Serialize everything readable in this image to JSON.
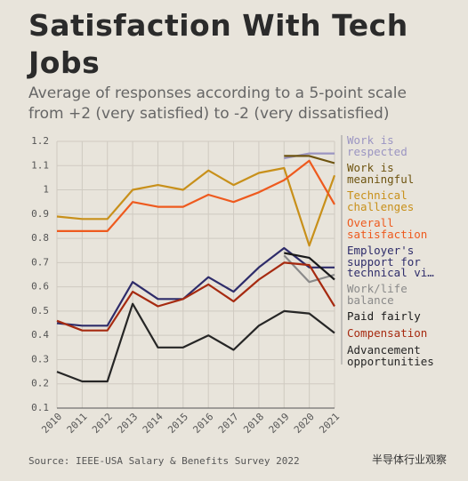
{
  "chart_data": {
    "type": "line",
    "title": "Satisfaction With Tech Jobs",
    "subtitle": "Average of responses according to a 5-point scale from +2 (very satisfied) to -2 (very dissatisfied)",
    "source": "Source: IEEE-USA Salary & Benefits Survey 2022",
    "watermark": "半导体行业观察",
    "categories": [
      "2010",
      "2011",
      "2012",
      "2013",
      "2014",
      "2015",
      "2016",
      "2017",
      "2018",
      "2019",
      "2020",
      "2021"
    ],
    "ylim": [
      0.1,
      1.2
    ],
    "yticks": [
      0.1,
      0.2,
      0.3,
      0.4,
      0.5,
      0.6,
      0.7,
      0.8,
      0.9,
      {
        "value": 1,
        "label": "1"
      },
      1.1,
      1.2
    ],
    "grid": true,
    "series": [
      {
        "name": "Work is respected",
        "color": "#9b95c2",
        "values": [
          null,
          null,
          null,
          null,
          null,
          null,
          null,
          null,
          null,
          1.13,
          1.15,
          1.15
        ]
      },
      {
        "name": "Work is meaningful",
        "color": "#6e5410",
        "values": [
          null,
          null,
          null,
          null,
          null,
          null,
          null,
          null,
          null,
          1.14,
          1.14,
          1.11
        ]
      },
      {
        "name": "Technical challenges",
        "color": "#c8901a",
        "values": [
          0.89,
          0.88,
          0.88,
          1.0,
          1.02,
          1.0,
          1.08,
          1.02,
          1.07,
          1.09,
          0.77,
          1.06
        ]
      },
      {
        "name": "Overall satisfaction",
        "color": "#ee5a1e",
        "values": [
          0.83,
          0.83,
          0.83,
          0.95,
          0.93,
          0.93,
          0.98,
          0.95,
          0.99,
          1.04,
          1.12,
          0.94
        ]
      },
      {
        "name": "Employer's support for technical vi…",
        "color": "#2e2c6a",
        "values": [
          0.45,
          0.44,
          0.44,
          0.62,
          0.55,
          0.55,
          0.64,
          0.58,
          0.68,
          0.76,
          0.68,
          0.68
        ]
      },
      {
        "name": "Work/life balance",
        "color": "#8a8a8a",
        "values": [
          null,
          null,
          null,
          null,
          null,
          null,
          null,
          null,
          null,
          0.73,
          0.62,
          0.65
        ]
      },
      {
        "name": "Paid fairly",
        "color": "#1a1a1a",
        "values": [
          null,
          null,
          null,
          null,
          null,
          null,
          null,
          null,
          null,
          0.74,
          0.72,
          0.63
        ]
      },
      {
        "name": "Compensation",
        "color": "#a62a10",
        "values": [
          0.46,
          0.42,
          0.42,
          0.58,
          0.52,
          0.55,
          0.61,
          0.54,
          0.63,
          0.7,
          0.69,
          0.52
        ]
      },
      {
        "name": "Advancement opportunities",
        "color": "#262626",
        "values": [
          0.25,
          0.21,
          0.21,
          0.53,
          0.35,
          0.35,
          0.4,
          0.34,
          0.44,
          0.5,
          0.49,
          0.41
        ]
      }
    ]
  }
}
